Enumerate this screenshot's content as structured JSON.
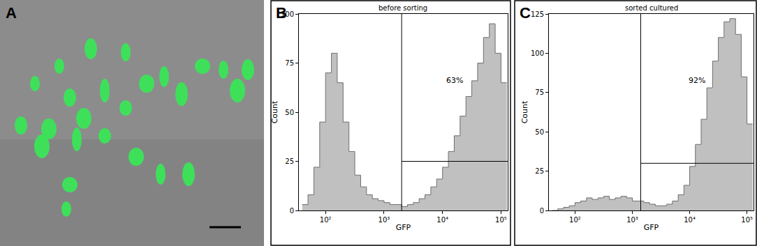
{
  "image_panel": {
    "label": "A"
  },
  "chart_data": [
    {
      "label": "B",
      "type": "histogram",
      "title": "before sorting",
      "x_label": "GFP",
      "y_label": "Count",
      "log": "x",
      "grid": false,
      "color": "#c0c0c0",
      "xlim": [
        35,
        130000
      ],
      "xticks": [
        {
          "value": 100,
          "label": "10²"
        },
        {
          "value": 1000,
          "label": "10³"
        },
        {
          "value": 10000,
          "label": "10⁴"
        },
        {
          "value": 100000,
          "label": "10⁵"
        }
      ],
      "ylim": [
        0,
        100
      ],
      "yticks": [
        0,
        25,
        50,
        75,
        100
      ],
      "bins": [
        39.8,
        50.1,
        63.1,
        79.4,
        100,
        125.9,
        158.5,
        199.5,
        251.2,
        316.2,
        398.1,
        501.2,
        631,
        794.3,
        1000,
        1259,
        1585,
        1995,
        2512,
        3162,
        3981,
        5012,
        6310,
        7943,
        10000,
        12589,
        15849,
        19953,
        25119,
        31623,
        39811,
        50119,
        63096,
        79433,
        100000,
        125893
      ],
      "counts": [
        3,
        8,
        22,
        45,
        70,
        80,
        65,
        45,
        30,
        18,
        12,
        8,
        6,
        5,
        4,
        3,
        3,
        2,
        3,
        4,
        6,
        8,
        12,
        16,
        22,
        30,
        38,
        48,
        58,
        66,
        75,
        88,
        95,
        80,
        65
      ],
      "gate": {
        "x": 2000,
        "y": 25,
        "value": 63,
        "label": "63%"
      }
    },
    {
      "label": "C",
      "type": "histogram",
      "title": "sorted cultured",
      "x_label": "GFP",
      "y_label": "Count",
      "log": "x",
      "grid": false,
      "color": "#c0c0c0",
      "xlim": [
        35,
        130000
      ],
      "xticks": [
        {
          "value": 100,
          "label": "10²"
        },
        {
          "value": 1000,
          "label": "10³"
        },
        {
          "value": 10000,
          "label": "10⁴"
        },
        {
          "value": 100000,
          "label": "10⁵"
        }
      ],
      "ylim": [
        0,
        125
      ],
      "yticks": [
        0,
        25,
        50,
        75,
        100,
        125
      ],
      "bins": [
        39.8,
        50.1,
        63.1,
        79.4,
        100,
        125.9,
        158.5,
        199.5,
        251.2,
        316.2,
        398.1,
        501.2,
        631,
        794.3,
        1000,
        1259,
        1585,
        1995,
        2512,
        3162,
        3981,
        5012,
        6310,
        7943,
        10000,
        12589,
        15849,
        19953,
        25119,
        31623,
        39811,
        50119,
        63096,
        79433,
        100000,
        125893
      ],
      "counts": [
        0,
        1,
        2,
        3,
        5,
        6,
        8,
        7,
        8,
        9,
        7,
        8,
        9,
        8,
        6,
        6,
        5,
        4,
        3,
        3,
        4,
        6,
        10,
        16,
        28,
        42,
        58,
        78,
        95,
        110,
        120,
        122,
        112,
        85,
        55
      ],
      "gate": {
        "x": 1400,
        "y": 30,
        "value": 92,
        "label": "92%"
      }
    }
  ]
}
